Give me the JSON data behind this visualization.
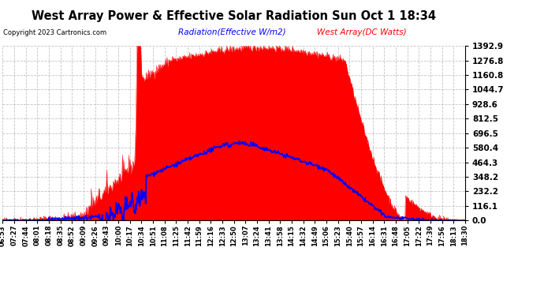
{
  "title": "West Array Power & Effective Solar Radiation Sun Oct 1 18:34",
  "copyright": "Copyright 2023 Cartronics.com",
  "legend_radiation": "Radiation(Effective W/m2)",
  "legend_west": "West Array(DC Watts)",
  "radiation_color": "blue",
  "west_color": "red",
  "background_color": "#ffffff",
  "grid_color": "#aaaaaa",
  "ymax": 1392.9,
  "ymin": 0.0,
  "yticks": [
    0.0,
    116.1,
    232.2,
    348.2,
    464.3,
    580.4,
    696.5,
    812.5,
    928.6,
    1044.7,
    1160.8,
    1276.8,
    1392.9
  ],
  "time_labels": [
    "06:53",
    "07:27",
    "07:44",
    "08:01",
    "08:18",
    "08:35",
    "08:52",
    "09:09",
    "09:26",
    "09:43",
    "10:00",
    "10:17",
    "10:34",
    "10:51",
    "11:08",
    "11:25",
    "11:42",
    "11:59",
    "12:16",
    "12:33",
    "12:50",
    "13:07",
    "13:24",
    "13:41",
    "13:58",
    "14:15",
    "14:32",
    "14:49",
    "15:06",
    "15:23",
    "15:40",
    "15:57",
    "16:14",
    "16:31",
    "16:48",
    "17:05",
    "17:22",
    "17:39",
    "17:56",
    "18:13",
    "18:30"
  ],
  "n_points": 800
}
